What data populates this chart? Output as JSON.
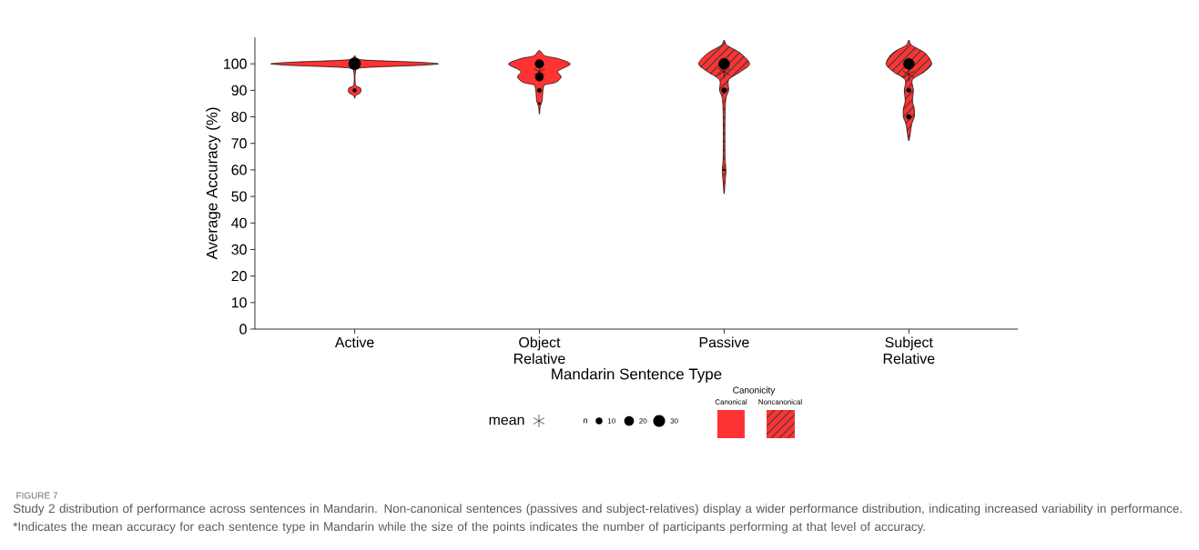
{
  "chart_data": {
    "type": "bubble",
    "xlabel": "Mandarin Sentence Type",
    "ylabel": "Average Accuracy (%)",
    "categories": [
      "Active",
      "Object Relative",
      "Passive",
      "Subject Relative"
    ],
    "ylim": [
      0,
      110
    ],
    "yticks": [
      0,
      10,
      20,
      30,
      40,
      50,
      60,
      70,
      80,
      90,
      100
    ],
    "series": [
      {
        "color": "#000000",
        "x": [
          "Active",
          "Active",
          "Object Relative",
          "Object Relative",
          "Object Relative",
          "Object Relative",
          "Passive",
          "Passive",
          "Passive",
          "Subject Relative",
          "Subject Relative",
          "Subject Relative"
        ],
        "values": [
          100,
          90,
          100,
          95,
          90,
          85,
          100,
          90,
          60,
          100,
          90,
          80
        ],
        "sizes": [
          30,
          3,
          16,
          14,
          4,
          1,
          25,
          6,
          1,
          25,
          4,
          5
        ]
      },
      {
        "type": "scatter",
        "name": "mean",
        "marker": "cross",
        "color": "#000000",
        "x": [
          "Active",
          "Object Relative",
          "Passive",
          "Subject Relative"
        ],
        "values": [
          null,
          97,
          97,
          96
        ]
      }
    ],
    "size_legend": [
      10,
      20,
      30
    ],
    "legend": "bottom",
    "annotations": [
      "n",
      "Canonicity",
      "Canonical",
      "Noncanonical",
      "FIGURE 7",
      "Study 2 distribution of performance across sentences in Mandarin. Non-canonical sentences (passives and subject-relatives) display a wider performance distribution, indicating increased variability in performance. *Indicates the mean accuracy for each sentence type in Mandarin while the size of the points indicates the number of participants performing at that level of accuracy."
    ]
  }
}
